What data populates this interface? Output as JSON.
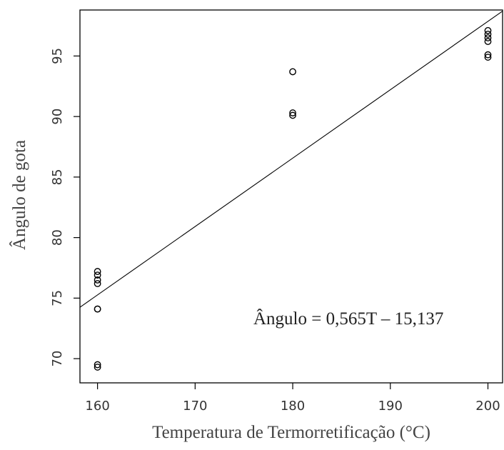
{
  "chart_data": {
    "type": "scatter",
    "xlabel": "Temperatura de Termorretificação (°C)",
    "ylabel": "Ângulo de gota",
    "xlim": [
      158.2,
      201.5
    ],
    "ylim": [
      68.0,
      98.8
    ],
    "x_ticks": [
      160,
      170,
      180,
      190,
      200
    ],
    "x_tick_labels": [
      "160",
      "170",
      "180",
      "190",
      "200"
    ],
    "y_ticks": [
      70,
      75,
      80,
      85,
      90,
      95
    ],
    "y_tick_labels": [
      "70",
      "75",
      "80",
      "85",
      "90",
      "95"
    ],
    "points": [
      {
        "x": 160,
        "y": 77.2
      },
      {
        "x": 160,
        "y": 76.9
      },
      {
        "x": 160,
        "y": 76.5
      },
      {
        "x": 160,
        "y": 76.2
      },
      {
        "x": 160,
        "y": 74.1
      },
      {
        "x": 160,
        "y": 74.1
      },
      {
        "x": 160,
        "y": 69.5
      },
      {
        "x": 160,
        "y": 69.3
      },
      {
        "x": 180,
        "y": 93.7
      },
      {
        "x": 180,
        "y": 90.3
      },
      {
        "x": 180,
        "y": 90.1
      },
      {
        "x": 200,
        "y": 97.1
      },
      {
        "x": 200,
        "y": 96.8
      },
      {
        "x": 200,
        "y": 96.5
      },
      {
        "x": 200,
        "y": 96.2
      },
      {
        "x": 200,
        "y": 95.1
      },
      {
        "x": 200,
        "y": 94.9
      }
    ],
    "fit_line": {
      "slope": 0.565,
      "intercept": -15.137
    },
    "annotation": "Ângulo = 0,565T – 15,137",
    "grid": false,
    "marker": "open-circle",
    "colors": {
      "axis": "#000000",
      "points": "#000000",
      "line": "#000000"
    }
  }
}
